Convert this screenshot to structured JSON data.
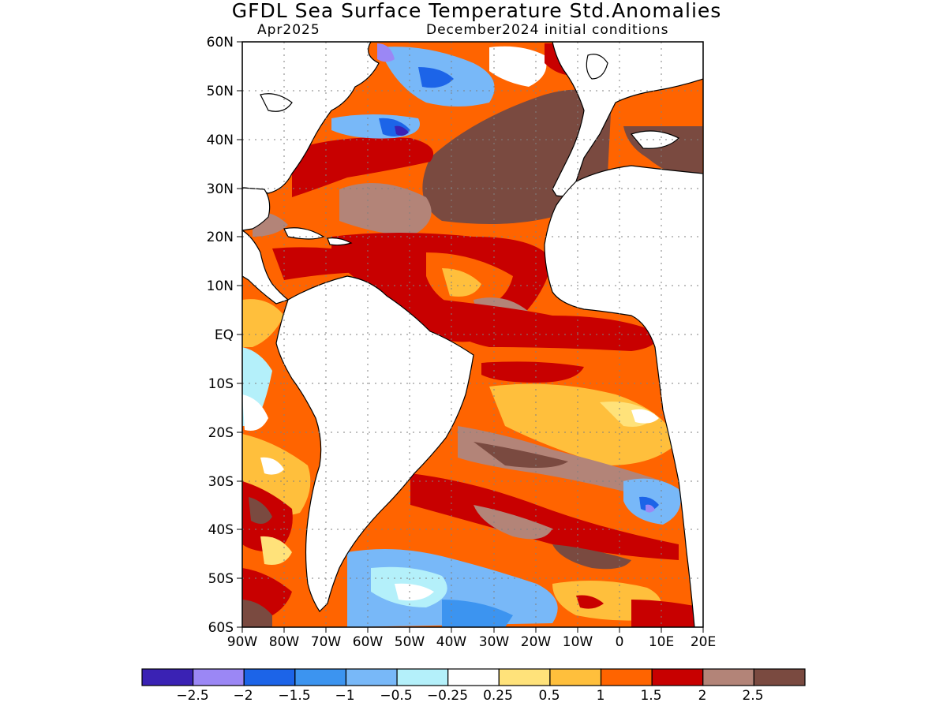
{
  "header": {
    "title": "GFDL Sea Surface Temperature Std.Anomalies",
    "valid_month": "Apr2025",
    "init": "December2024 initial conditions"
  },
  "map": {
    "region": "Atlantic Ocean",
    "lon_range": [
      -90,
      20
    ],
    "lat_range": [
      -60,
      60
    ],
    "grid": "dotted",
    "y_ticks": [
      "60N",
      "50N",
      "40N",
      "30N",
      "20N",
      "10N",
      "EQ",
      "10S",
      "20S",
      "30S",
      "40S",
      "50S",
      "60S"
    ],
    "x_ticks": [
      "90W",
      "80W",
      "70W",
      "60W",
      "50W",
      "40W",
      "30W",
      "20W",
      "10W",
      "0",
      "10E",
      "20E"
    ]
  },
  "colorbar": {
    "colors": [
      "#3a22b4",
      "#9b87f5",
      "#1c64e8",
      "#3c94f0",
      "#78b8f8",
      "#b4f0fa",
      "#ffffff",
      "#ffe27a",
      "#ffbf3c",
      "#ff6400",
      "#c80000",
      "#b38478",
      "#7a4a40"
    ],
    "labels": [
      "−2.5",
      "−2",
      "−1.5",
      "−1",
      "−0.5",
      "−0.25",
      "0.25",
      "0.5",
      "1",
      "1.5",
      "2",
      "2.5"
    ]
  }
}
